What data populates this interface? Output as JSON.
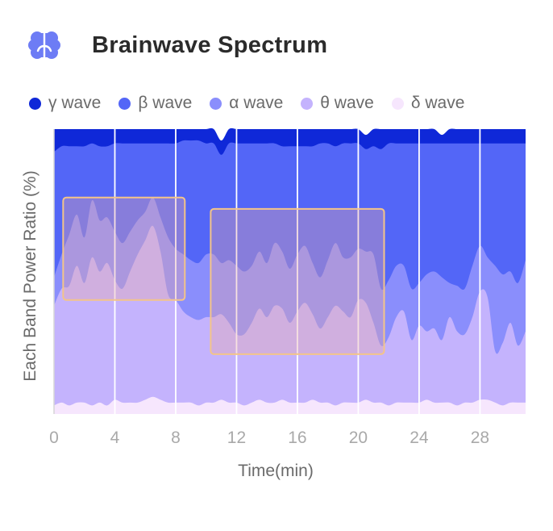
{
  "header": {
    "title": "Brainwave Spectrum",
    "icon": "brain-icon"
  },
  "colors": {
    "gamma": "#0f28d8",
    "beta": "#5366f7",
    "alpha": "#8a8efc",
    "theta": "#c4b3fd",
    "delta": "#f6e6fd",
    "highlight_border": "#f3c489",
    "highlight_fill": "#e9a9a6"
  },
  "chart_data": {
    "type": "area",
    "stacked": true,
    "title": "Brainwave Spectrum",
    "xlabel": "Time(min)",
    "ylabel": "Each Band Power Ratio (%)",
    "xlim": [
      0,
      31
    ],
    "ylim": [
      0,
      100
    ],
    "x_ticks": [
      "0",
      "4",
      "8",
      "12",
      "16",
      "20",
      "24",
      "28"
    ],
    "grid": "vertical",
    "legend_position": "top",
    "legend": [
      "γ wave",
      "β wave",
      "α wave",
      "θ wave",
      "δ wave"
    ],
    "x": [
      0,
      0.5,
      1,
      1.5,
      2,
      2.5,
      3,
      3.5,
      4,
      4.5,
      5,
      5.5,
      6,
      6.5,
      7,
      7.5,
      8,
      8.5,
      9,
      9.5,
      10,
      10.5,
      11,
      11.5,
      12,
      12.5,
      13,
      13.5,
      14,
      14.5,
      15,
      15.5,
      16,
      16.5,
      17,
      17.5,
      18,
      18.5,
      19,
      19.5,
      20,
      20.5,
      21,
      21.5,
      22,
      22.5,
      23,
      23.5,
      24,
      24.5,
      25,
      25.5,
      26,
      26.5,
      27,
      27.5,
      28,
      28.5,
      29,
      29.5,
      30,
      30.5,
      31
    ],
    "series": [
      {
        "name": "δ wave",
        "values": [
          3,
          4,
          3,
          4,
          4,
          3,
          4,
          3,
          5,
          4,
          4,
          4,
          5,
          6,
          5,
          4,
          4,
          4,
          4,
          3,
          4,
          4,
          5,
          4,
          4,
          3,
          4,
          5,
          4,
          4,
          5,
          4,
          4,
          4,
          5,
          4,
          4,
          3,
          4,
          4,
          4,
          5,
          4,
          4,
          3,
          4,
          4,
          4,
          4,
          5,
          4,
          4,
          4,
          3,
          4,
          4,
          5,
          5,
          4,
          3,
          4,
          4,
          4
        ]
      },
      {
        "name": "θ wave",
        "values": [
          35,
          40,
          42,
          48,
          42,
          52,
          46,
          50,
          42,
          40,
          46,
          52,
          56,
          60,
          52,
          38,
          36,
          32,
          30,
          30,
          30,
          30,
          30,
          28,
          24,
          25,
          28,
          32,
          30,
          34,
          32,
          28,
          32,
          35,
          30,
          26,
          30,
          35,
          32,
          30,
          36,
          34,
          28,
          20,
          24,
          30,
          32,
          22,
          27,
          24,
          26,
          22,
          30,
          26,
          24,
          30,
          38,
          36,
          18,
          22,
          28,
          20,
          25
        ]
      },
      {
        "name": "α wave",
        "values": [
          10,
          12,
          18,
          18,
          16,
          20,
          18,
          16,
          17,
          16,
          14,
          12,
          10,
          10,
          12,
          20,
          18,
          20,
          20,
          20,
          22,
          22,
          18,
          22,
          24,
          22,
          20,
          20,
          19,
          22,
          20,
          19,
          20,
          20,
          18,
          18,
          20,
          22,
          19,
          21,
          18,
          18,
          24,
          20,
          20,
          18,
          16,
          18,
          15,
          20,
          20,
          22,
          12,
          16,
          16,
          18,
          16,
          14,
          30,
          24,
          18,
          22,
          25
        ]
      },
      {
        "name": "β wave",
        "values": [
          44,
          38,
          31,
          24,
          32,
          20,
          26,
          25,
          31,
          35,
          31,
          27,
          24,
          19,
          26,
          33,
          37,
          40,
          42,
          43,
          39,
          39,
          38,
          41,
          43,
          45,
          43,
          38,
          42,
          35,
          37,
          43,
          38,
          35,
          41,
          47,
          41,
          34,
          40,
          40,
          37,
          36,
          38,
          49,
          48,
          43,
          43,
          51,
          49,
          46,
          45,
          47,
          49,
          50,
          51,
          43,
          36,
          40,
          43,
          46,
          45,
          49,
          41
        ]
      },
      {
        "name": "γ wave",
        "values": [
          8,
          6,
          6,
          6,
          6,
          5,
          6,
          6,
          5,
          5,
          5,
          5,
          5,
          5,
          5,
          5,
          5,
          4,
          4,
          4,
          5,
          5,
          5,
          5,
          5,
          5,
          5,
          5,
          5,
          5,
          6,
          6,
          6,
          6,
          6,
          5,
          5,
          6,
          5,
          5,
          5,
          5,
          6,
          7,
          5,
          5,
          5,
          5,
          5,
          5,
          5,
          3,
          5,
          5,
          5,
          5,
          5,
          5,
          5,
          5,
          5,
          5,
          5
        ]
      }
    ],
    "highlights": [
      {
        "x": [
          0.6,
          8.6
        ],
        "y": [
          40,
          76
        ]
      },
      {
        "x": [
          10.3,
          21.7
        ],
        "y": [
          21,
          72
        ]
      }
    ]
  },
  "axes": {
    "xlabel": "Time(min)",
    "ylabel": "Each Band Power Ratio (%)"
  }
}
